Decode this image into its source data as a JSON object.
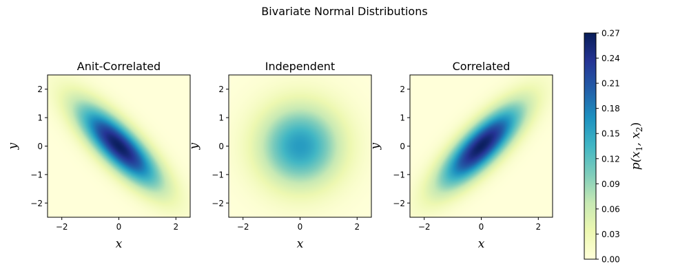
{
  "figure": {
    "suptitle": "Bivariate Normal Distributions"
  },
  "chart_data": [
    {
      "type": "heatmap",
      "title": "Anit-Correlated",
      "xlabel": "x",
      "ylabel": "y",
      "xlim": [
        -2.5,
        2.5
      ],
      "ylim": [
        -2.5,
        2.5
      ],
      "xticks": [
        -2,
        0,
        2
      ],
      "yticks": [
        -2,
        -1,
        0,
        1,
        2
      ],
      "distribution": {
        "mean": [
          0,
          0
        ],
        "var_x": 1,
        "var_y": 1,
        "rho": -0.8
      }
    },
    {
      "type": "heatmap",
      "title": "Independent",
      "xlabel": "x",
      "ylabel": "y",
      "xlim": [
        -2.5,
        2.5
      ],
      "ylim": [
        -2.5,
        2.5
      ],
      "xticks": [
        -2,
        0,
        2
      ],
      "yticks": [
        -2,
        -1,
        0,
        1,
        2
      ],
      "distribution": {
        "mean": [
          0,
          0
        ],
        "var_x": 1,
        "var_y": 1,
        "rho": 0
      }
    },
    {
      "type": "heatmap",
      "title": "Correlated",
      "xlabel": "x",
      "ylabel": "y",
      "xlim": [
        -2.5,
        2.5
      ],
      "ylim": [
        -2.5,
        2.5
      ],
      "xticks": [
        -2,
        0,
        2
      ],
      "yticks": [
        -2,
        -1,
        0,
        1,
        2
      ],
      "distribution": {
        "mean": [
          0,
          0
        ],
        "var_x": 1,
        "var_y": 1,
        "rho": 0.8
      }
    }
  ],
  "colorbar": {
    "label": "p(x₁, x₂)",
    "label_base": "p(x",
    "label_sub1": "1",
    "label_mid": ", x",
    "label_sub2": "2",
    "label_end": ")",
    "range": [
      0,
      0.27
    ],
    "ticks": [
      "0.00",
      "0.03",
      "0.06",
      "0.09",
      "0.12",
      "0.15",
      "0.18",
      "0.21",
      "0.24",
      "0.27"
    ],
    "colormap": "YlGnBu",
    "colormap_stops": [
      "#ffffd9",
      "#edf8b1",
      "#c7e9b4",
      "#7fcdbb",
      "#41b6c4",
      "#1d91c0",
      "#225ea8",
      "#253494",
      "#081d58"
    ]
  }
}
